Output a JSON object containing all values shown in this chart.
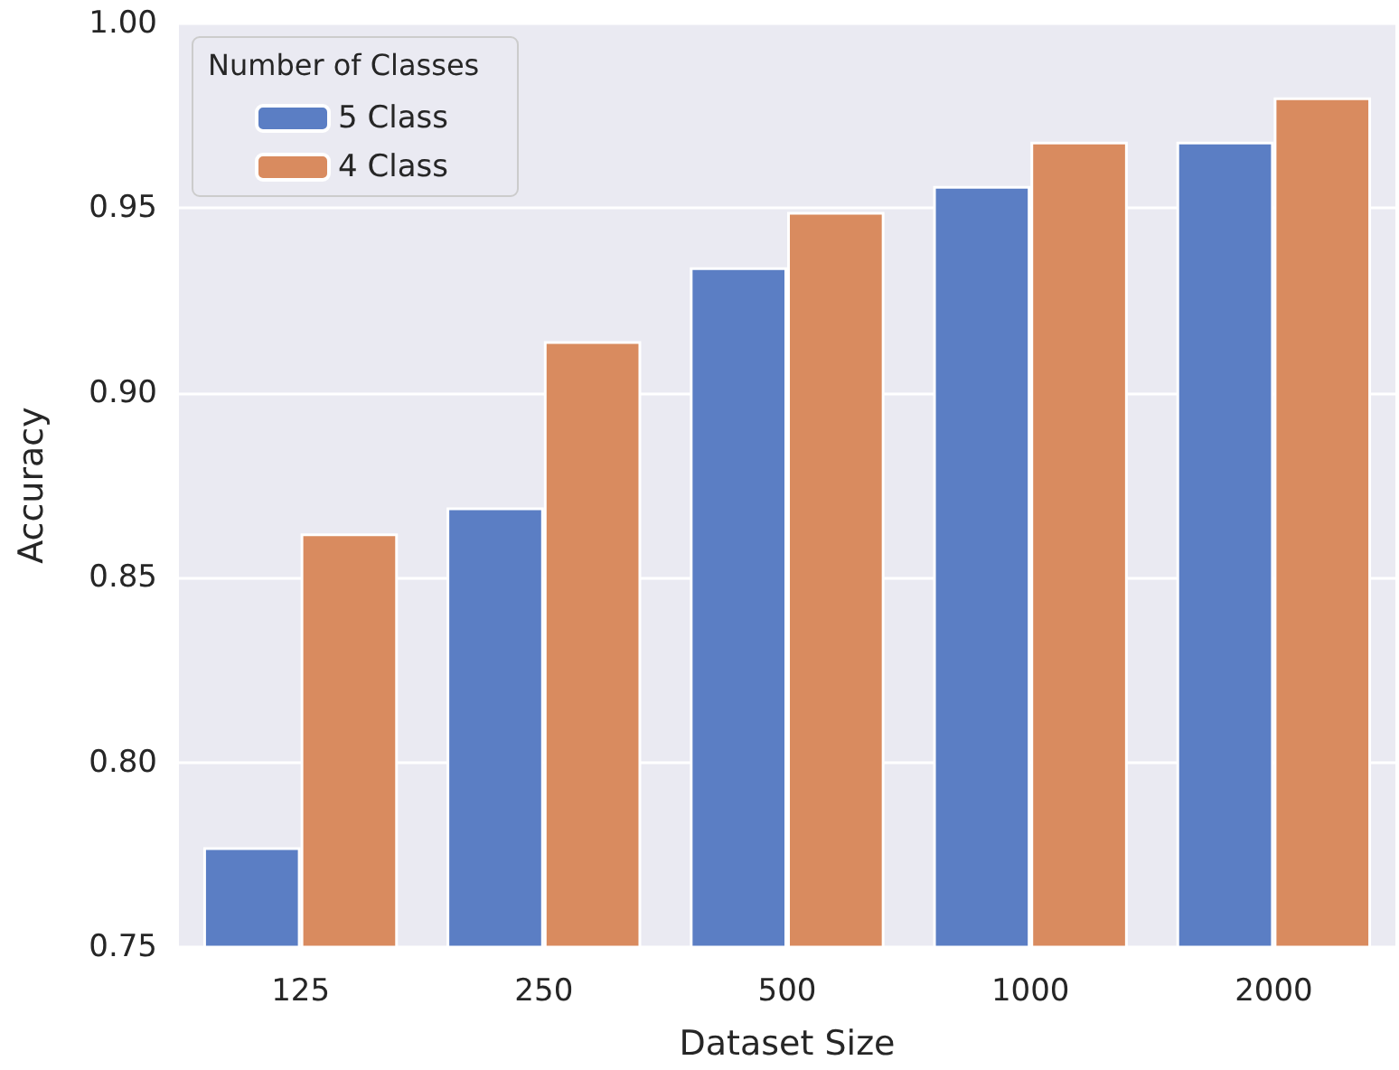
{
  "chart_data": {
    "type": "bar",
    "xlabel": "Dataset Size",
    "ylabel": "Accuracy",
    "legend_title": "Number of Classes",
    "categories": [
      "125",
      "250",
      "500",
      "1000",
      "2000"
    ],
    "series": [
      {
        "name": "5 Class",
        "color": "#5b7ec4",
        "values": [
          0.777,
          0.869,
          0.934,
          0.956,
          0.968
        ]
      },
      {
        "name": "4 Class",
        "color": "#d98b5f",
        "values": [
          0.862,
          0.914,
          0.949,
          0.968,
          0.98
        ]
      }
    ],
    "ylim": [
      0.75,
      1.0
    ],
    "yticks": [
      {
        "value": 0.75,
        "label": "0.75"
      },
      {
        "value": 0.8,
        "label": "0.80"
      },
      {
        "value": 0.85,
        "label": "0.85"
      },
      {
        "value": 0.9,
        "label": "0.90"
      },
      {
        "value": 0.95,
        "label": "0.95"
      },
      {
        "value": 1.0,
        "label": "1.00"
      }
    ],
    "grid": "y",
    "legend": "top left"
  }
}
